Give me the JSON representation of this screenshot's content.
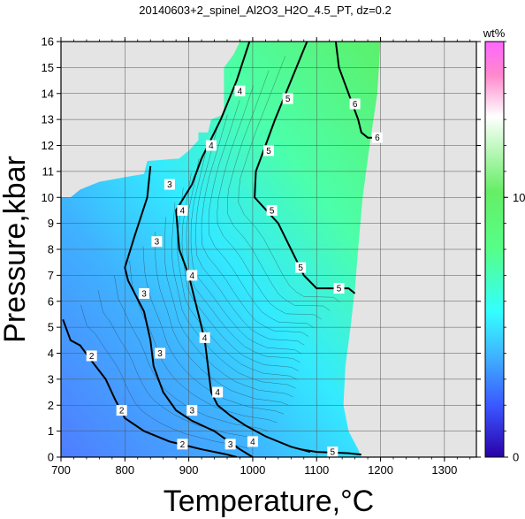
{
  "chart_data": {
    "type": "heatmap",
    "title": "20140603+2_spinel_Al2O3_H2O_4.5_PT, dz=0.2",
    "xlabel": "Temperature,°C",
    "ylabel": "Pressure,kbar",
    "xlim": [
      700,
      1350
    ],
    "ylim": [
      0,
      16
    ],
    "x_ticks": [
      700,
      800,
      900,
      1000,
      1100,
      1200,
      1300
    ],
    "y_ticks": [
      0,
      1,
      2,
      3,
      4,
      5,
      6,
      7,
      8,
      9,
      10,
      11,
      12,
      13,
      14,
      15,
      16
    ],
    "grid": true,
    "colorbar": {
      "label": "wt%",
      "range": [
        0,
        16
      ],
      "ticks": [
        0,
        10
      ],
      "colors": [
        "#2a00a8",
        "#3a55ff",
        "#3fb8ff",
        "#33ffff",
        "#55ff88",
        "#66ee66",
        "#ffffff",
        "#ff88cc",
        "#ff66ff"
      ]
    },
    "data_region": {
      "left_edge": [
        [
          715,
          10
        ],
        [
          730,
          10.3
        ],
        [
          760,
          10.6
        ],
        [
          805,
          10.8
        ],
        [
          830,
          10.9
        ],
        [
          835,
          11.4
        ],
        [
          885,
          11.5
        ],
        [
          900,
          11.8
        ],
        [
          915,
          12.2
        ],
        [
          915,
          12.5
        ],
        [
          930,
          12.5
        ],
        [
          935,
          13
        ],
        [
          955,
          13.2
        ],
        [
          955,
          13.8
        ],
        [
          955,
          15
        ],
        [
          970,
          15.5
        ],
        [
          980,
          16
        ]
      ],
      "right_edge": [
        [
          1200,
          16
        ],
        [
          1195,
          14
        ],
        [
          1183,
          12
        ],
        [
          1172,
          10
        ],
        [
          1165,
          8
        ],
        [
          1160,
          6.5
        ],
        [
          1153,
          5
        ],
        [
          1145,
          3.5
        ],
        [
          1142,
          2
        ],
        [
          1150,
          1
        ],
        [
          1165,
          0.3
        ],
        [
          1170,
          0
        ]
      ],
      "bottom": 0,
      "min_t": 700
    },
    "major_contours": [
      {
        "level": 2,
        "points": [
          [
            703,
            5.3
          ],
          [
            715,
            4.5
          ],
          [
            730,
            4.3
          ],
          [
            745,
            3.8
          ],
          [
            770,
            3
          ],
          [
            785,
            2.2
          ],
          [
            800,
            1.5
          ],
          [
            830,
            1
          ],
          [
            870,
            0.6
          ],
          [
            920,
            0.3
          ],
          [
            960,
            0.1
          ],
          [
            975,
            0
          ]
        ],
        "labels": [
          [
            748,
            3.9
          ],
          [
            795,
            1.8
          ],
          [
            890,
            0.5
          ]
        ]
      },
      {
        "level": 3,
        "points": [
          [
            840,
            11.2
          ],
          [
            835,
            10
          ],
          [
            815,
            8.5
          ],
          [
            800,
            7.3
          ],
          [
            805,
            6.8
          ],
          [
            830,
            5.6
          ],
          [
            840,
            4.5
          ],
          [
            845,
            3.5
          ],
          [
            860,
            2.5
          ],
          [
            880,
            1.8
          ],
          [
            905,
            1.4
          ],
          [
            940,
            1
          ],
          [
            980,
            0.3
          ],
          [
            1000,
            0
          ]
        ],
        "labels": [
          [
            870,
            10.5
          ],
          [
            850,
            8.3
          ],
          [
            830,
            6.3
          ],
          [
            855,
            4
          ],
          [
            905,
            1.8
          ],
          [
            965,
            0.5
          ]
        ]
      },
      {
        "level": 4,
        "points": [
          [
            995,
            16
          ],
          [
            975,
            14.5
          ],
          [
            950,
            13
          ],
          [
            920,
            11.5
          ],
          [
            905,
            10.5
          ],
          [
            880,
            9.5
          ],
          [
            885,
            8
          ],
          [
            900,
            7
          ],
          [
            915,
            5.5
          ],
          [
            925,
            4.5
          ],
          [
            930,
            3.5
          ],
          [
            935,
            2.5
          ],
          [
            945,
            2
          ],
          [
            965,
            1.6
          ],
          [
            990,
            1.2
          ],
          [
            1020,
            0.8
          ],
          [
            1060,
            0.4
          ],
          [
            1090,
            0.2
          ]
        ],
        "labels": [
          [
            980,
            14.1
          ],
          [
            935,
            12
          ],
          [
            890,
            9.5
          ],
          [
            905,
            7
          ],
          [
            925,
            4.6
          ],
          [
            945,
            2.5
          ],
          [
            1000,
            0.6
          ]
        ]
      },
      {
        "level": 5,
        "points": [
          [
            1085,
            16
          ],
          [
            1060,
            14.5
          ],
          [
            1035,
            13
          ],
          [
            1020,
            12
          ],
          [
            1005,
            11
          ],
          [
            1003,
            10
          ],
          [
            1040,
            9
          ],
          [
            1060,
            8
          ],
          [
            1080,
            7
          ],
          [
            1100,
            6.5
          ],
          [
            1150,
            6.5
          ],
          [
            1160,
            6.3
          ]
        ],
        "labels": [
          [
            1055,
            13.8
          ],
          [
            1025,
            11.8
          ],
          [
            1030,
            9.5
          ],
          [
            1075,
            7.3
          ],
          [
            1135,
            6.5
          ]
        ]
      },
      {
        "level": 5,
        "points": [
          [
            1075,
            0.3
          ],
          [
            1100,
            0.2
          ],
          [
            1150,
            0.15
          ],
          [
            1170,
            0.1
          ]
        ],
        "labels": [
          [
            1125,
            0.2
          ]
        ]
      },
      {
        "level": 6,
        "points": [
          [
            1130,
            16
          ],
          [
            1135,
            15
          ],
          [
            1150,
            14
          ],
          [
            1165,
            13
          ],
          [
            1170,
            12.5
          ],
          [
            1180,
            12.3
          ],
          [
            1200,
            12.3
          ]
        ],
        "labels": [
          [
            1160,
            13.6
          ],
          [
            1195,
            12.3
          ]
        ]
      }
    ],
    "minor_contour_count": 18
  }
}
